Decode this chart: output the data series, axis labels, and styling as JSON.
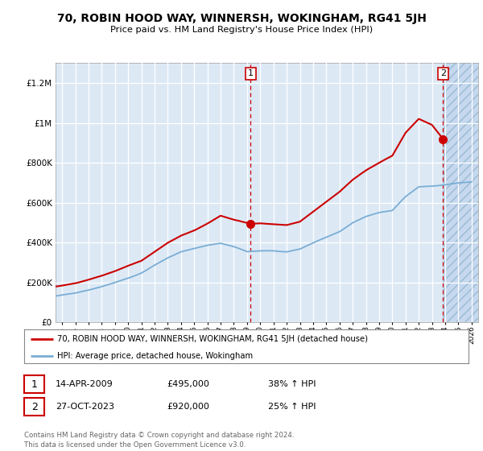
{
  "title": "70, ROBIN HOOD WAY, WINNERSH, WOKINGHAM, RG41 5JH",
  "subtitle": "Price paid vs. HM Land Registry's House Price Index (HPI)",
  "background_color": "#dce9f5",
  "hatch_region_color": "#c5d8ee",
  "grid_color": "#ffffff",
  "red_line_color": "#cc0000",
  "blue_line_color": "#7aadd4",
  "point1_date_x": 2009.28,
  "point1_price": 495000,
  "point2_date_x": 2023.83,
  "point2_price": 920000,
  "xmin": 1994.5,
  "xmax": 2026.5,
  "ymin": 0,
  "ymax": 1300000,
  "yticks": [
    0,
    200000,
    400000,
    600000,
    800000,
    1000000,
    1200000
  ],
  "ytick_labels": [
    "£0",
    "£200K",
    "£400K",
    "£600K",
    "£800K",
    "£1M",
    "£1.2M"
  ],
  "xticks": [
    1995,
    1996,
    1997,
    1998,
    1999,
    2000,
    2001,
    2002,
    2003,
    2004,
    2005,
    2006,
    2007,
    2008,
    2009,
    2010,
    2011,
    2012,
    2013,
    2014,
    2015,
    2016,
    2017,
    2018,
    2019,
    2020,
    2021,
    2022,
    2023,
    2024,
    2025,
    2026
  ],
  "legend_label_red": "70, ROBIN HOOD WAY, WINNERSH, WOKINGHAM, RG41 5JH (detached house)",
  "legend_label_blue": "HPI: Average price, detached house, Wokingham",
  "annotation1_num": "1",
  "annotation1_date": "14-APR-2009",
  "annotation1_price": "£495,000",
  "annotation1_hpi": "38% ↑ HPI",
  "annotation2_num": "2",
  "annotation2_date": "27-OCT-2023",
  "annotation2_price": "£920,000",
  "annotation2_hpi": "25% ↑ HPI",
  "footer": "Contains HM Land Registry data © Crown copyright and database right 2024.\nThis data is licensed under the Open Government Licence v3.0."
}
